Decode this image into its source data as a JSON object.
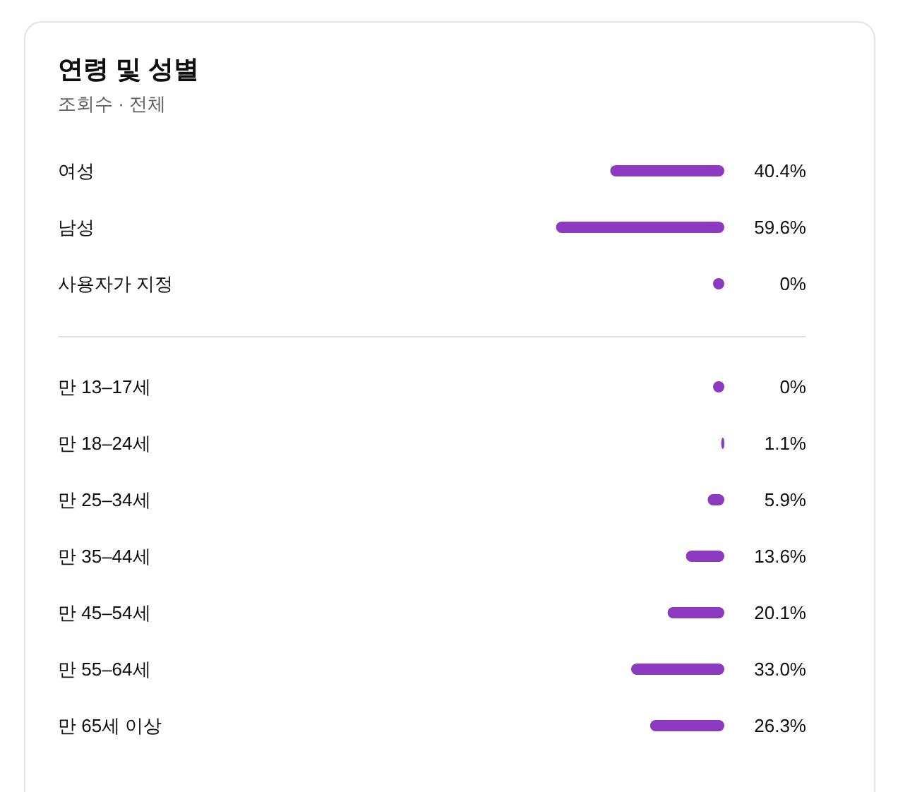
{
  "chart_data": [
    {
      "type": "bar",
      "title": "연령 및 성별",
      "subtitle": "조회수 · 전체",
      "orientation": "horizontal",
      "categories": [
        "여성",
        "남성",
        "사용자가 지정"
      ],
      "values": [
        40.4,
        59.6,
        0
      ],
      "value_labels": [
        "40.4%",
        "59.6%",
        "0%"
      ],
      "color": "#8c3bc1"
    },
    {
      "type": "bar",
      "orientation": "horizontal",
      "categories": [
        "만 13–17세",
        "만 18–24세",
        "만 25–34세",
        "만 35–44세",
        "만 45–54세",
        "만 55–64세",
        "만 65세 이상"
      ],
      "values": [
        0,
        1.1,
        5.9,
        13.6,
        20.1,
        33.0,
        26.3
      ],
      "value_labels": [
        "0%",
        "1.1%",
        "5.9%",
        "13.6%",
        "20.1%",
        "33.0%",
        "26.3%"
      ],
      "color": "#8c3bc1"
    }
  ]
}
